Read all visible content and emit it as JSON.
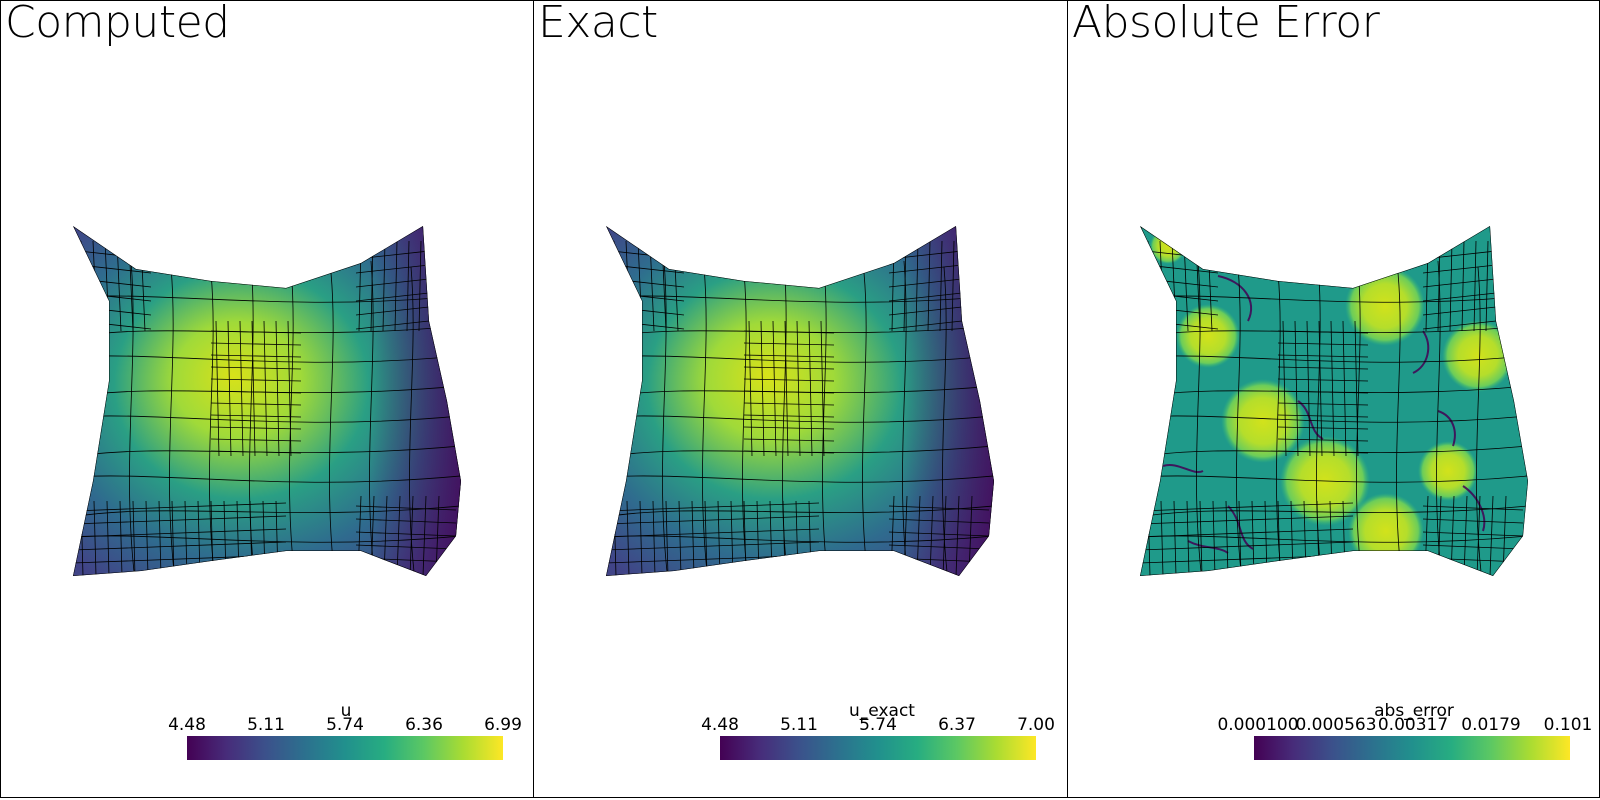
{
  "panels": [
    {
      "title": "Computed",
      "field": "u",
      "colormap": "viridis",
      "colorbar": {
        "title": "u",
        "ticks": [
          "4.48",
          "5.11",
          "5.74",
          "6.36",
          "6.99"
        ]
      }
    },
    {
      "title": "Exact",
      "field": "u_exact",
      "colormap": "viridis",
      "colorbar": {
        "title": "u_exact",
        "ticks": [
          "4.48",
          "5.11",
          "5.74",
          "6.37",
          "7.00"
        ]
      }
    },
    {
      "title": "Absolute Error",
      "field": "abs_error",
      "colormap": "viridis",
      "scale": "log",
      "colorbar": {
        "title": "abs_error",
        "ticks": [
          "0.000100",
          "0.000563",
          "0.00317",
          "0.0179",
          "0.101"
        ]
      }
    }
  ],
  "colors": {
    "viridis_low": "#440154",
    "viridis_mid": "#21908d",
    "viridis_high": "#fde725",
    "mesh_lines": "#000000"
  }
}
